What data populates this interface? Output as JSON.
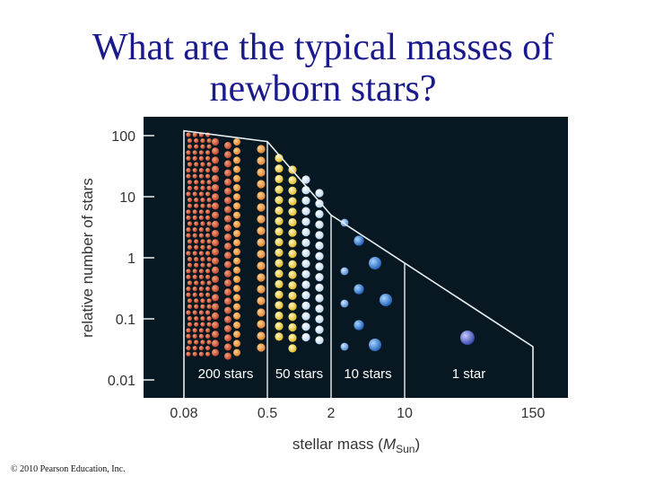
{
  "title": {
    "line1": "What are the typical masses of",
    "line2": "newborn stars?"
  },
  "copyright": "© 2010 Pearson Education, Inc.",
  "colors": {
    "title": "#1a1a8c",
    "panel": "#081822",
    "outline": "#e8eef2"
  },
  "chart_data": {
    "type": "step",
    "xlabel_text": "stellar mass (",
    "xlabel_symbol": "M",
    "xlabel_sub": "Sun",
    "xlabel_close": ")",
    "ylabel": "relative number of stars",
    "x_scale": "log",
    "y_scale": "log",
    "y_ticks": [
      {
        "value": 100,
        "label": "100"
      },
      {
        "value": 10,
        "label": "10"
      },
      {
        "value": 1,
        "label": "1"
      },
      {
        "value": 0.1,
        "label": "0.1"
      },
      {
        "value": 0.01,
        "label": "0.01"
      }
    ],
    "x_ticks": [
      {
        "value": 0.08,
        "label": "0.08"
      },
      {
        "value": 0.5,
        "label": "0.5"
      },
      {
        "value": 2,
        "label": "2"
      },
      {
        "value": 10,
        "label": "10"
      },
      {
        "value": 150,
        "label": "150"
      }
    ],
    "envelope": [
      {
        "mass": 0.08,
        "number": 120
      },
      {
        "mass": 0.5,
        "number": 80
      },
      {
        "mass": 2,
        "number": 5
      },
      {
        "mass": 150,
        "number": 0.035
      }
    ],
    "groups": [
      {
        "label": "200 stars",
        "mass_min": 0.08,
        "mass_max": 0.5,
        "count": 200,
        "color": "#d9603f"
      },
      {
        "label": "50 stars",
        "mass_min": 0.5,
        "mass_max": 2,
        "count": 50,
        "color": "#f3d84e"
      },
      {
        "label": "10 stars",
        "mass_min": 2,
        "mass_max": 10,
        "count": 10,
        "color": "#6fa4e0"
      },
      {
        "label": "1 star",
        "mass_min": 10,
        "mass_max": 150,
        "count": 1,
        "color": "#4a68d0"
      }
    ]
  }
}
